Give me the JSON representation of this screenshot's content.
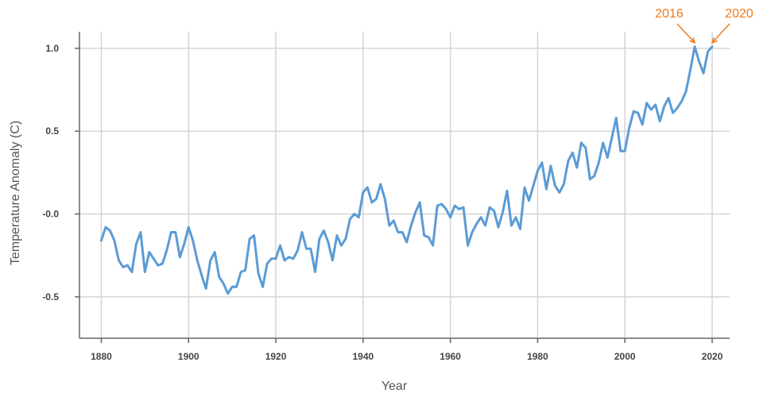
{
  "chart_data": {
    "type": "line",
    "title": "",
    "xlabel": "Year",
    "ylabel": "Temperature Anomaly (C)",
    "xlim": [
      1875,
      2024
    ],
    "ylim": [
      -0.75,
      1.1
    ],
    "grid": true,
    "legend": "none",
    "x_ticks": [
      {
        "value": 1880,
        "label": "1880"
      },
      {
        "value": 1900,
        "label": "1900"
      },
      {
        "value": 1920,
        "label": "1920"
      },
      {
        "value": 1940,
        "label": "1940"
      },
      {
        "value": 1960,
        "label": "1960"
      },
      {
        "value": 1980,
        "label": "1980"
      },
      {
        "value": 2000,
        "label": "2000"
      },
      {
        "value": 2020,
        "label": "2020"
      }
    ],
    "y_ticks": [
      {
        "value": 1.0,
        "label": "1.0"
      },
      {
        "value": 0.5,
        "label": "0.5"
      },
      {
        "value": 0.0,
        "label": "-0.0"
      },
      {
        "value": -0.5,
        "label": "-0.5"
      }
    ],
    "colors": {
      "line": "#5b9bd5",
      "annotation": "#f07a1a",
      "grid": "#d4d4d4",
      "axis": "#666666"
    },
    "series": [
      {
        "x": [
          1880,
          1881,
          1882,
          1883,
          1884,
          1885,
          1886,
          1887,
          1888,
          1889,
          1890,
          1891,
          1892,
          1893,
          1894,
          1895,
          1896,
          1897,
          1898,
          1899,
          1900,
          1901,
          1902,
          1903,
          1904,
          1905,
          1906,
          1907,
          1908,
          1909,
          1910,
          1911,
          1912,
          1913,
          1914,
          1915,
          1916,
          1917,
          1918,
          1919,
          1920,
          1921,
          1922,
          1923,
          1924,
          1925,
          1926,
          1927,
          1928,
          1929,
          1930,
          1931,
          1932,
          1933,
          1934,
          1935,
          1936,
          1937,
          1938,
          1939,
          1940,
          1941,
          1942,
          1943,
          1944,
          1945,
          1946,
          1947,
          1948,
          1949,
          1950,
          1951,
          1952,
          1953,
          1954,
          1955,
          1956,
          1957,
          1958,
          1959,
          1960,
          1961,
          1962,
          1963,
          1964,
          1965,
          1966,
          1967,
          1968,
          1969,
          1970,
          1971,
          1972,
          1973,
          1974,
          1975,
          1976,
          1977,
          1978,
          1979,
          1980,
          1981,
          1982,
          1983,
          1984,
          1985,
          1986,
          1987,
          1988,
          1989,
          1990,
          1991,
          1992,
          1993,
          1994,
          1995,
          1996,
          1997,
          1998,
          1999,
          2000,
          2001,
          2002,
          2003,
          2004,
          2005,
          2006,
          2007,
          2008,
          2009,
          2010,
          2011,
          2012,
          2013,
          2014,
          2015,
          2016,
          2017,
          2018,
          2019,
          2020
        ],
        "values": [
          -0.16,
          -0.08,
          -0.1,
          -0.16,
          -0.28,
          -0.32,
          -0.31,
          -0.35,
          -0.18,
          -0.11,
          -0.35,
          -0.23,
          -0.27,
          -0.31,
          -0.3,
          -0.22,
          -0.11,
          -0.11,
          -0.26,
          -0.18,
          -0.08,
          -0.16,
          -0.28,
          -0.37,
          -0.45,
          -0.28,
          -0.23,
          -0.38,
          -0.42,
          -0.48,
          -0.44,
          -0.44,
          -0.35,
          -0.34,
          -0.15,
          -0.13,
          -0.36,
          -0.44,
          -0.3,
          -0.27,
          -0.27,
          -0.19,
          -0.28,
          -0.26,
          -0.27,
          -0.22,
          -0.11,
          -0.21,
          -0.21,
          -0.35,
          -0.15,
          -0.1,
          -0.17,
          -0.28,
          -0.13,
          -0.19,
          -0.15,
          -0.03,
          0.0,
          -0.02,
          0.13,
          0.16,
          0.07,
          0.09,
          0.18,
          0.09,
          -0.07,
          -0.04,
          -0.11,
          -0.11,
          -0.17,
          -0.07,
          0.01,
          0.07,
          -0.13,
          -0.14,
          -0.19,
          0.05,
          0.06,
          0.03,
          -0.02,
          0.05,
          0.03,
          0.04,
          -0.19,
          -0.11,
          -0.06,
          -0.02,
          -0.07,
          0.04,
          0.02,
          -0.08,
          0.01,
          0.14,
          -0.07,
          -0.02,
          -0.09,
          0.16,
          0.08,
          0.17,
          0.26,
          0.31,
          0.15,
          0.29,
          0.17,
          0.13,
          0.18,
          0.32,
          0.37,
          0.28,
          0.43,
          0.4,
          0.21,
          0.23,
          0.31,
          0.43,
          0.34,
          0.46,
          0.58,
          0.38,
          0.38,
          0.52,
          0.62,
          0.61,
          0.54,
          0.67,
          0.63,
          0.66,
          0.56,
          0.65,
          0.7,
          0.61,
          0.64,
          0.68,
          0.74,
          0.87,
          1.01,
          0.92,
          0.85,
          0.98,
          1.01
        ]
      }
    ],
    "annotations": [
      {
        "label": "2016",
        "x": 2016,
        "y": 1.01
      },
      {
        "label": "2020",
        "x": 2020,
        "y": 1.01
      }
    ]
  }
}
